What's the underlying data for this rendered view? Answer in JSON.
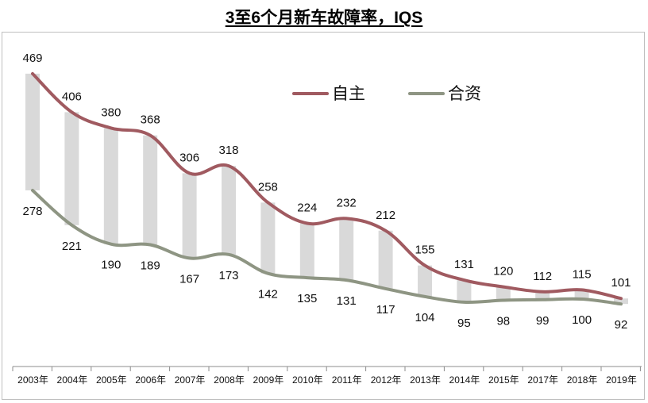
{
  "chart_data": {
    "type": "line",
    "title": "3至6个月新车故障率，IQS",
    "categories": [
      "2003年",
      "2004年",
      "2005年",
      "2006年",
      "2007年",
      "2008年",
      "2009年",
      "2010年",
      "2011年",
      "2012年",
      "2013年",
      "2014年",
      "2015年",
      "2017年",
      "2018年",
      "2019年"
    ],
    "series": [
      {
        "name": "自主",
        "color": "#a05a60",
        "values": [
          469,
          406,
          380,
          368,
          306,
          318,
          258,
          224,
          232,
          212,
          155,
          131,
          120,
          112,
          115,
          101
        ]
      },
      {
        "name": "合资",
        "color": "#8e9583",
        "values": [
          278,
          221,
          190,
          189,
          167,
          173,
          142,
          135,
          131,
          117,
          104,
          95,
          98,
          99,
          100,
          92
        ]
      }
    ],
    "gap_bar_color": "#d9d9d9",
    "grid": false,
    "legend": "top-right"
  }
}
